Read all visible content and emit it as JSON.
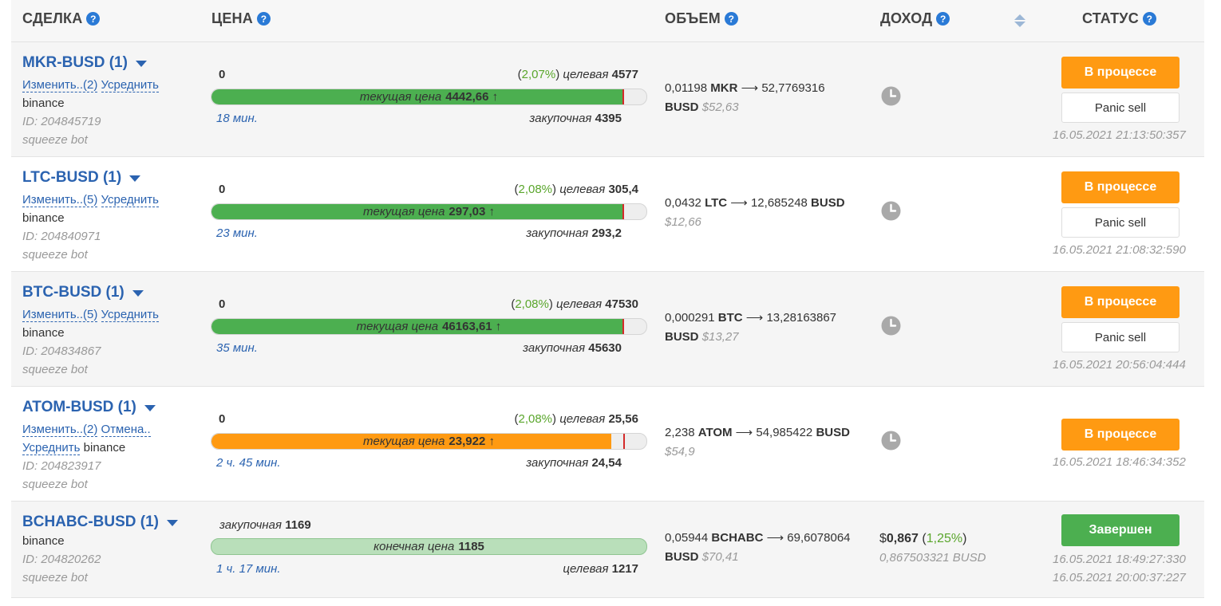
{
  "header": {
    "deal": "СДЕЛКА",
    "price": "ЦЕНА",
    "volume": "ОБЪЕМ",
    "income": "ДОХОД",
    "status": "СТАТУС",
    "help_icon": "question-circle-icon",
    "sort_icon": "sort-icon"
  },
  "colors": {
    "link": "#2b63b0",
    "green": "#4caf50",
    "orange": "#ff9a12",
    "light_green": "#b9dfba",
    "red_marker": "#d42a2a"
  },
  "deals": [
    {
      "pair": "MKR-BUSD (1)",
      "edit": "Изменить..(2)",
      "average": "Усреднить",
      "exchange": "binance",
      "id": "ID: 204845719",
      "bot": "squeeze bot",
      "zero": "0",
      "pct": "2,07%",
      "target_label": "целевая",
      "target": "4577",
      "current_label": "текущая цена",
      "current": "4442,66 ↑",
      "time": "18 мин.",
      "buy_label": "закупочная",
      "buy": "4395",
      "fill": 0.945,
      "marker": 0.945,
      "bar_color": "green",
      "vol_amount": "0,01198",
      "vol_asset": "MKR",
      "vol_result": "52,7769316",
      "vol_quote": "BUSD",
      "vol_usd": "$52,63",
      "status": "В процессе",
      "panic": "Panic sell",
      "timestamp": "16.05.2021 21:13:50:357"
    },
    {
      "pair": "LTC-BUSD (1)",
      "edit": "Изменить..(5)",
      "average": "Усреднить",
      "exchange": "binance",
      "id": "ID: 204840971",
      "bot": "squeeze bot",
      "zero": "0",
      "pct": "2,08%",
      "target_label": "целевая",
      "target": "305,4",
      "current_label": "текущая цена",
      "current": "297,03 ↑",
      "time": "23 мин.",
      "buy_label": "закупочная",
      "buy": "293,2",
      "fill": 0.945,
      "marker": 0.945,
      "bar_color": "green",
      "vol_amount": "0,0432",
      "vol_asset": "LTC",
      "vol_result": "12,685248",
      "vol_quote": "BUSD",
      "vol_usd": "$12,66",
      "status": "В процессе",
      "panic": "Panic sell",
      "timestamp": "16.05.2021 21:08:32:590"
    },
    {
      "pair": "BTC-BUSD (1)",
      "edit": "Изменить..(5)",
      "average": "Усреднить",
      "exchange": "binance",
      "id": "ID: 204834867",
      "bot": "squeeze bot",
      "zero": "0",
      "pct": "2,08%",
      "target_label": "целевая",
      "target": "47530",
      "current_label": "текущая цена",
      "current": "46163,61 ↑",
      "time": "35 мин.",
      "buy_label": "закупочная",
      "buy": "45630",
      "fill": 0.945,
      "marker": 0.945,
      "bar_color": "green",
      "vol_amount": "0,000291",
      "vol_asset": "BTC",
      "vol_result": "13,28163867",
      "vol_quote": "BUSD",
      "vol_usd": "$13,27",
      "status": "В процессе",
      "panic": "Panic sell",
      "timestamp": "16.05.2021 20:56:04:444"
    },
    {
      "pair": "ATOM-BUSD (1)",
      "edit": "Изменить..(2)",
      "cancel": "Отмена..",
      "average": "Усреднить",
      "exchange": "binance",
      "id": "ID: 204823917",
      "bot": "squeeze bot",
      "zero": "0",
      "pct": "2,08%",
      "target_label": "целевая",
      "target": "25,56",
      "current_label": "текущая цена",
      "current": "23,922 ↑",
      "time": "2 ч. 45 мин.",
      "buy_label": "закупочная",
      "buy": "24,54",
      "fill": 0.92,
      "marker": 0.947,
      "bar_color": "orange",
      "vol_amount": "2,238",
      "vol_asset": "ATOM",
      "vol_result": "54,985422",
      "vol_quote": "BUSD",
      "vol_usd": "$54,9",
      "status": "В процессе",
      "timestamp": "16.05.2021 18:46:34:352"
    }
  ],
  "completed": {
    "pair": "BCHABC-BUSD (1)",
    "exchange": "binance",
    "id": "ID: 204820262",
    "bot": "squeeze bot",
    "buy_label": "закупочная",
    "buy": "1169",
    "final_label": "конечная цена",
    "final": "1185",
    "time": "1 ч. 17 мин.",
    "target_label": "целевая",
    "target": "1217",
    "vol_amount": "0,05944",
    "vol_asset": "BCHABC",
    "vol_result": "69,6078064",
    "vol_quote": "BUSD",
    "vol_usd": "$70,41",
    "profit_sign": "$",
    "profit": "0,867",
    "profit_pct": "1,25%",
    "profit_sub": "0,867503321 BUSD",
    "status": "Завершен",
    "timestamp1": "16.05.2021 18:49:27:330",
    "timestamp2": "16.05.2021 20:00:37:227"
  }
}
